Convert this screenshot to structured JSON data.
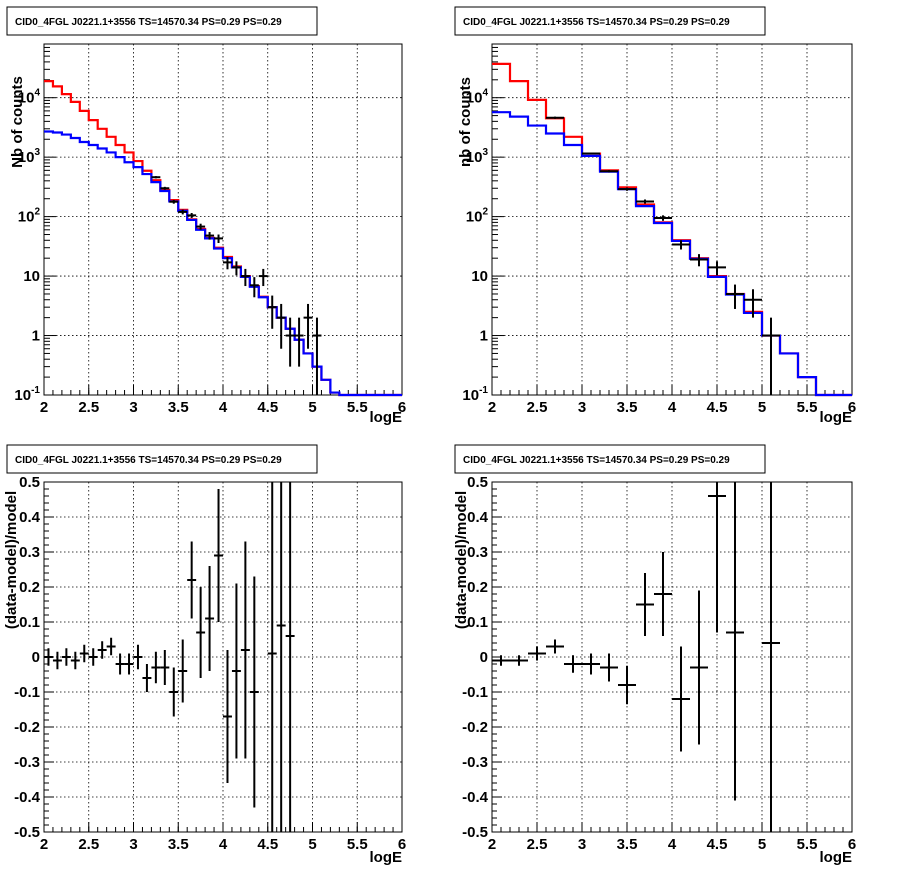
{
  "chart_data": [
    {
      "type": "line",
      "title": "CID0_4FGL J0221.1+3556 TS=14570.34 PS=0.29 PS=0.29",
      "xlabel": "logE",
      "ylabel": "Nb of counts",
      "xlim": [
        2,
        6
      ],
      "ylim": [
        0.1,
        80000
      ],
      "yscale": "log",
      "grid": true,
      "x_ticks": [
        "2",
        "2.5",
        "3",
        "3.5",
        "4",
        "4.5",
        "5",
        "5.5",
        "6"
      ],
      "y_ticks": [
        {
          "value": 0.1,
          "base": "10",
          "exp": "-1"
        },
        {
          "value": 1,
          "label": "1"
        },
        {
          "value": 10,
          "label": "10"
        },
        {
          "value": 100,
          "base": "10",
          "exp": "2"
        },
        {
          "value": 1000,
          "base": "10",
          "exp": "3"
        },
        {
          "value": 10000,
          "base": "10",
          "exp": "4"
        }
      ],
      "colors": {
        "model_total": "#ff0000",
        "model_component": "#0000ff",
        "data": "#000000"
      },
      "bin_edges": [
        2,
        2.1,
        2.2,
        2.3,
        2.4,
        2.5,
        2.6,
        2.7,
        2.8,
        2.9,
        3,
        3.1,
        3.2,
        3.3,
        3.4,
        3.5,
        3.6,
        3.7,
        3.8,
        3.9,
        4,
        4.1,
        4.2,
        4.3,
        4.4,
        4.5,
        4.6,
        4.7,
        4.8,
        4.9,
        5,
        5.1,
        5.2,
        5.3,
        5.4,
        5.5,
        5.6,
        5.7,
        5.8,
        5.9,
        6
      ],
      "series": [
        {
          "key": "model_total",
          "values": [
            19000,
            15500,
            11500,
            8500,
            6000,
            4200,
            3000,
            2200,
            1600,
            1200,
            860,
            590,
            410,
            280,
            190,
            130,
            90,
            62,
            44,
            30,
            21,
            14.5,
            10,
            6.8,
            4.5,
            3,
            2,
            1.3,
            0.85,
            0.5,
            0.3,
            0.18,
            0.11,
            0.1,
            0.1,
            0.1,
            0.1,
            0.1,
            0.1,
            0.1
          ]
        },
        {
          "key": "model_component",
          "values": [
            2700,
            2600,
            2400,
            2100,
            1800,
            1600,
            1400,
            1200,
            1000,
            820,
            680,
            520,
            380,
            270,
            180,
            125,
            88,
            60,
            43,
            29,
            20,
            14,
            9.7,
            6.6,
            4.4,
            3,
            2,
            1.3,
            0.85,
            0.5,
            0.3,
            0.18,
            0.11,
            0.1,
            0.1,
            0.1,
            0.1,
            0.1,
            0.1,
            0.1
          ]
        }
      ],
      "data_points": [
        {
          "x": 3.25,
          "y": 460,
          "lo": 440,
          "hi": 480
        },
        {
          "x": 3.35,
          "y": 300,
          "lo": 283,
          "hi": 317
        },
        {
          "x": 3.45,
          "y": 178,
          "lo": 165,
          "hi": 191
        },
        {
          "x": 3.55,
          "y": 120,
          "lo": 109,
          "hi": 131
        },
        {
          "x": 3.65,
          "y": 105,
          "lo": 95,
          "hi": 115
        },
        {
          "x": 3.75,
          "y": 68,
          "lo": 60,
          "hi": 76
        },
        {
          "x": 3.85,
          "y": 48,
          "lo": 41,
          "hi": 55
        },
        {
          "x": 3.95,
          "y": 43,
          "lo": 36,
          "hi": 50
        },
        {
          "x": 4.05,
          "y": 17,
          "lo": 13,
          "hi": 21
        },
        {
          "x": 4.15,
          "y": 14,
          "lo": 10.3,
          "hi": 17.7
        },
        {
          "x": 4.25,
          "y": 10,
          "lo": 6.8,
          "hi": 13.2
        },
        {
          "x": 4.35,
          "y": 7,
          "lo": 4.4,
          "hi": 9.6
        },
        {
          "x": 4.45,
          "y": 10,
          "lo": 6.8,
          "hi": 13.2
        },
        {
          "x": 4.55,
          "y": 3,
          "lo": 1.3,
          "hi": 4.7
        },
        {
          "x": 4.65,
          "y": 2,
          "lo": 0.6,
          "hi": 3.4
        },
        {
          "x": 4.75,
          "y": 1,
          "lo": 0.3,
          "hi": 2
        },
        {
          "x": 4.85,
          "y": 1,
          "lo": 0.3,
          "hi": 2
        },
        {
          "x": 4.95,
          "y": 2,
          "lo": 0.6,
          "hi": 3.4
        },
        {
          "x": 5.05,
          "y": 1,
          "lo": 0.1,
          "hi": 2
        }
      ]
    },
    {
      "type": "line",
      "title": "CID0_4FGL J0221.1+3556 TS=14570.34 PS=0.29 PS=0.29",
      "xlabel": "logE",
      "ylabel": "nb of counts",
      "xlim": [
        2,
        6
      ],
      "ylim": [
        0.1,
        80000
      ],
      "yscale": "log",
      "grid": true,
      "x_ticks": [
        "2",
        "2.5",
        "3",
        "3.5",
        "4",
        "4.5",
        "5",
        "5.5",
        "6"
      ],
      "y_ticks": [
        {
          "value": 0.1,
          "base": "10",
          "exp": "-1"
        },
        {
          "value": 1,
          "label": "1"
        },
        {
          "value": 10,
          "label": "10"
        },
        {
          "value": 100,
          "base": "10",
          "exp": "2"
        },
        {
          "value": 1000,
          "base": "10",
          "exp": "3"
        },
        {
          "value": 10000,
          "base": "10",
          "exp": "4"
        }
      ],
      "colors": {
        "model_total": "#ff0000",
        "model_component": "#0000ff",
        "data": "#000000"
      },
      "bin_edges": [
        2,
        2.2,
        2.4,
        2.6,
        2.8,
        3,
        3.2,
        3.4,
        3.6,
        3.8,
        4,
        4.2,
        4.4,
        4.6,
        4.8,
        5,
        5.2,
        5.4,
        5.6,
        5.8,
        6
      ],
      "series": [
        {
          "key": "model_total",
          "values": [
            37000,
            19000,
            9200,
            4500,
            2200,
            1150,
            600,
            310,
            160,
            80,
            40,
            20,
            10,
            5,
            2.5,
            1,
            0.5,
            0.2,
            0.1,
            0.1
          ]
        },
        {
          "key": "model_component",
          "values": [
            5700,
            4800,
            3400,
            2500,
            1600,
            1050,
            570,
            290,
            150,
            78,
            39,
            19.5,
            9.7,
            4.9,
            2.4,
            1,
            0.5,
            0.2,
            0.1,
            0.1
          ]
        }
      ],
      "data_points": [
        {
          "x": 2.7,
          "y": 4600,
          "lo": 4400,
          "hi": 4800
        },
        {
          "x": 3.1,
          "y": 1150,
          "lo": 1110,
          "hi": 1190
        },
        {
          "x": 3.3,
          "y": 580,
          "lo": 555,
          "hi": 605
        },
        {
          "x": 3.5,
          "y": 290,
          "lo": 272,
          "hi": 308
        },
        {
          "x": 3.7,
          "y": 180,
          "lo": 166,
          "hi": 194
        },
        {
          "x": 3.9,
          "y": 95,
          "lo": 85,
          "hi": 105
        },
        {
          "x": 4.1,
          "y": 34,
          "lo": 28,
          "hi": 40
        },
        {
          "x": 4.3,
          "y": 19,
          "lo": 14.6,
          "hi": 23.4
        },
        {
          "x": 4.5,
          "y": 14,
          "lo": 10.3,
          "hi": 17.7
        },
        {
          "x": 4.7,
          "y": 5,
          "lo": 2.8,
          "hi": 7.2
        },
        {
          "x": 4.9,
          "y": 4,
          "lo": 2,
          "hi": 6
        },
        {
          "x": 5.1,
          "y": 1,
          "lo": 0.1,
          "hi": 2
        }
      ]
    },
    {
      "type": "scatter",
      "title": "CID0_4FGL J0221.1+3556 TS=14570.34 PS=0.29 PS=0.29",
      "xlabel": "logE",
      "ylabel": "(data-model)/model",
      "xlim": [
        2,
        6
      ],
      "ylim": [
        -0.5,
        0.5
      ],
      "grid": true,
      "x_ticks": [
        "2",
        "2.5",
        "3",
        "3.5",
        "4",
        "4.5",
        "5",
        "5.5",
        "6"
      ],
      "y_ticks": [
        "-0.5",
        "-0.4",
        "-0.3",
        "-0.2",
        "-0.1",
        "0",
        "0.1",
        "0.2",
        "0.3",
        "0.4",
        "0.5"
      ],
      "half_width": 0.05,
      "points": [
        {
          "x": 2.05,
          "y": 0.0,
          "err": 0.025
        },
        {
          "x": 2.15,
          "y": -0.01,
          "err": 0.025
        },
        {
          "x": 2.25,
          "y": 0.0,
          "err": 0.025
        },
        {
          "x": 2.35,
          "y": -0.01,
          "err": 0.025
        },
        {
          "x": 2.45,
          "y": 0.01,
          "err": 0.025
        },
        {
          "x": 2.55,
          "y": 0.0,
          "err": 0.025
        },
        {
          "x": 2.65,
          "y": 0.02,
          "err": 0.025
        },
        {
          "x": 2.75,
          "y": 0.03,
          "err": 0.025
        },
        {
          "x": 2.85,
          "y": -0.02,
          "err": 0.03
        },
        {
          "x": 2.95,
          "y": -0.02,
          "err": 0.03
        },
        {
          "x": 3.05,
          "y": 0.0,
          "err": 0.035
        },
        {
          "x": 3.15,
          "y": -0.06,
          "err": 0.04
        },
        {
          "x": 3.25,
          "y": -0.03,
          "err": 0.045
        },
        {
          "x": 3.35,
          "y": -0.03,
          "err": 0.05
        },
        {
          "x": 3.45,
          "y": -0.1,
          "err": 0.07
        },
        {
          "x": 3.55,
          "y": -0.04,
          "err": 0.09
        },
        {
          "x": 3.65,
          "y": 0.22,
          "err": 0.11
        },
        {
          "x": 3.75,
          "y": 0.07,
          "err": 0.13
        },
        {
          "x": 3.85,
          "y": 0.11,
          "err": 0.15
        },
        {
          "x": 3.95,
          "y": 0.29,
          "err": 0.19
        },
        {
          "x": 4.05,
          "y": -0.17,
          "err": 0.19
        },
        {
          "x": 4.15,
          "y": -0.04,
          "err": 0.25
        },
        {
          "x": 4.25,
          "y": 0.02,
          "err": 0.31
        },
        {
          "x": 4.35,
          "y": -0.1,
          "err": 0.33
        },
        {
          "x": 4.55,
          "y": 0.01,
          "err": 0.6
        },
        {
          "x": 4.65,
          "y": 0.09,
          "err": 0.6
        },
        {
          "x": 4.75,
          "y": 0.06,
          "err": 0.6
        }
      ]
    },
    {
      "type": "scatter",
      "title": "CID0_4FGL J0221.1+3556 TS=14570.34 PS=0.29 PS=0.29",
      "xlabel": "logE",
      "ylabel": "(data-model)/model",
      "xlim": [
        2,
        6
      ],
      "ylim": [
        -0.5,
        0.5
      ],
      "grid": true,
      "x_ticks": [
        "2",
        "2.5",
        "3",
        "3.5",
        "4",
        "4.5",
        "5",
        "5.5",
        "6"
      ],
      "y_ticks": [
        "-0.5",
        "-0.4",
        "-0.3",
        "-0.2",
        "-0.1",
        "0",
        "0.1",
        "0.2",
        "0.3",
        "0.4",
        "0.5"
      ],
      "half_width": 0.1,
      "points": [
        {
          "x": 2.1,
          "y": -0.01,
          "err": 0.015
        },
        {
          "x": 2.3,
          "y": -0.01,
          "err": 0.015
        },
        {
          "x": 2.5,
          "y": 0.01,
          "err": 0.02
        },
        {
          "x": 2.7,
          "y": 0.03,
          "err": 0.02
        },
        {
          "x": 2.9,
          "y": -0.02,
          "err": 0.025
        },
        {
          "x": 3.1,
          "y": -0.02,
          "err": 0.03
        },
        {
          "x": 3.3,
          "y": -0.03,
          "err": 0.04
        },
        {
          "x": 3.5,
          "y": -0.08,
          "err": 0.055
        },
        {
          "x": 3.7,
          "y": 0.15,
          "err": 0.09
        },
        {
          "x": 3.9,
          "y": 0.18,
          "err": 0.12
        },
        {
          "x": 4.1,
          "y": -0.12,
          "err": 0.15
        },
        {
          "x": 4.3,
          "y": -0.03,
          "err": 0.22
        },
        {
          "x": 4.5,
          "y": 0.46,
          "err": 0.39
        },
        {
          "x": 4.7,
          "y": 0.07,
          "err": 0.48
        },
        {
          "x": 5.1,
          "y": 0.04,
          "err": 1.0
        }
      ]
    }
  ]
}
